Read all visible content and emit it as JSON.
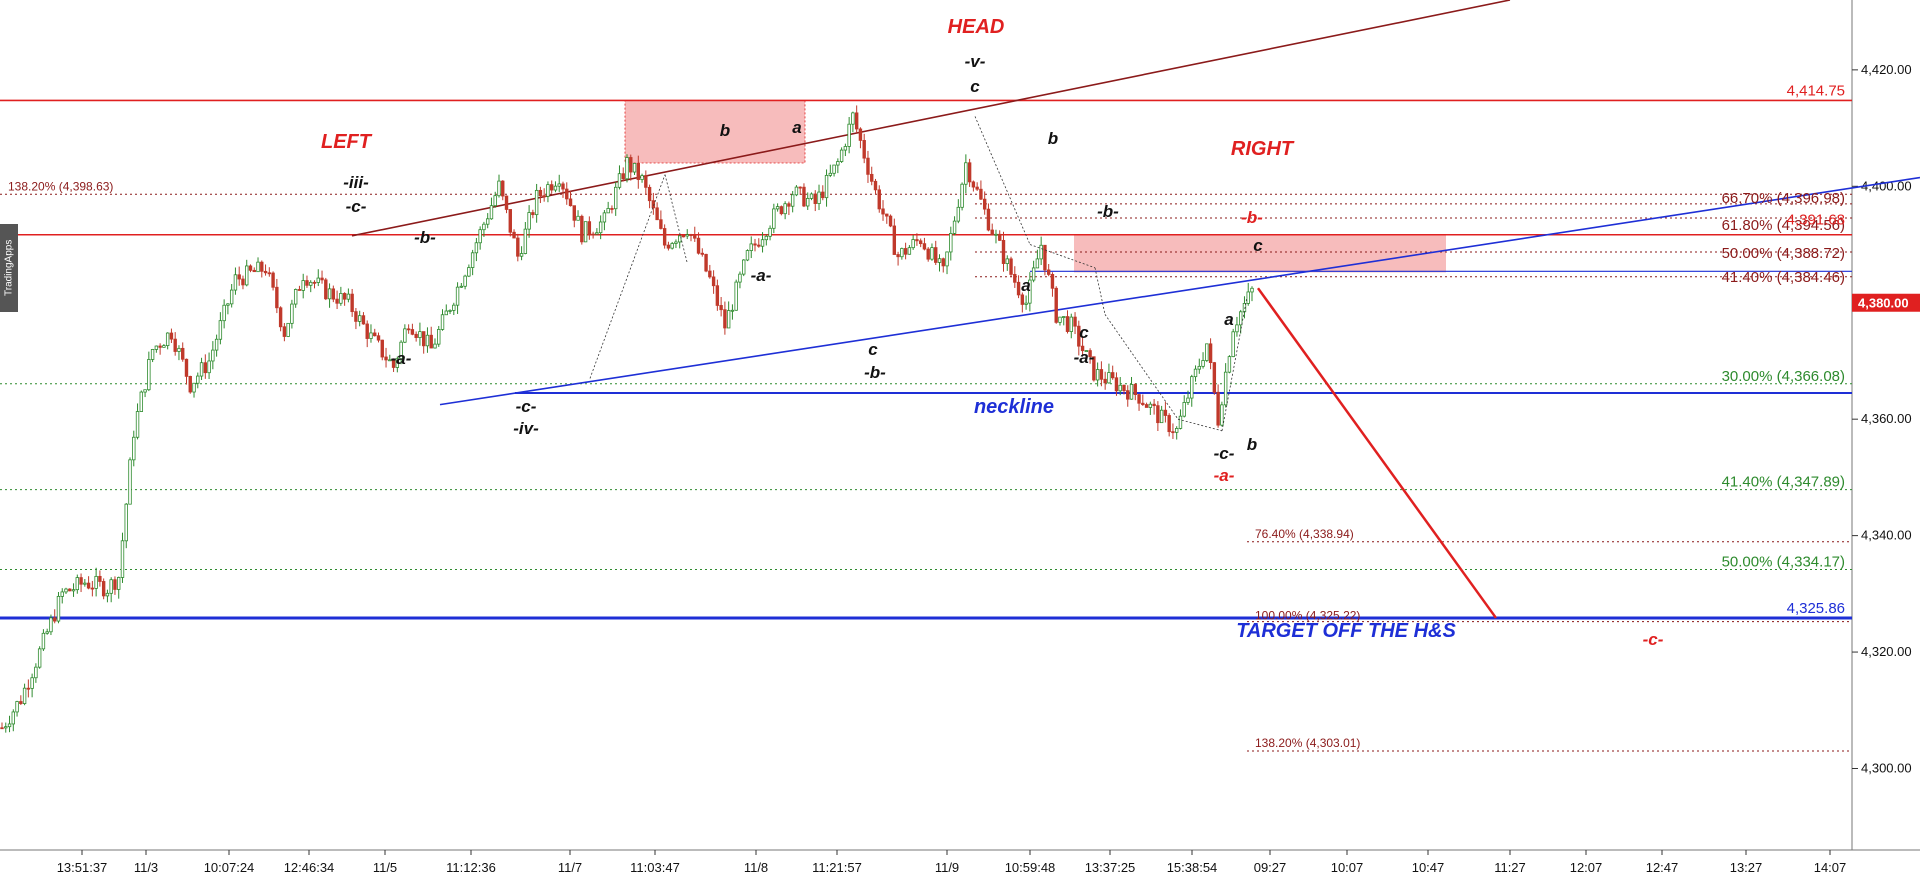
{
  "sidebar_tab": "TradingApps",
  "colors": {
    "candle_up": "#2e8b2e",
    "candle_down": "#c0392b",
    "resistance": "#e02020",
    "trendline": "#8b1a1a",
    "neckline": "#1e2fd6",
    "target": "#1e2fd6",
    "fib_red": "#8b1a1a",
    "fib_green": "#2e8b2e",
    "zone": "#f4a6a6",
    "price_tag": "#e02020"
  },
  "chart_data": {
    "type": "candlestick",
    "title": "",
    "ylim": [
      4286,
      4432
    ],
    "y_ticks": [
      "4,300.00",
      "4,320.00",
      "4,340.00",
      "4,360.00",
      "4,380.00",
      "4,400.00",
      "4,420.00"
    ],
    "y_tick_values": [
      4300,
      4320,
      4340,
      4360,
      4380,
      4400,
      4420
    ],
    "x_ticks": [
      "13:51:37",
      "11/3",
      "10:07:24",
      "12:46:34",
      "11/5",
      "11:12:36",
      "11/7",
      "11:03:47",
      "11/8",
      "11:21:57",
      "11/9",
      "10:59:48",
      "13:37:25",
      "15:38:54",
      "09:27",
      "10:07",
      "10:47",
      "11:27",
      "12:07",
      "12:47",
      "13:27",
      "14:07"
    ],
    "last_price": "4,380.00",
    "last_price_value": 4380,
    "price_anchors": [
      [
        0,
        4307
      ],
      [
        5,
        4312
      ],
      [
        10,
        4320
      ],
      [
        16,
        4330
      ],
      [
        22,
        4332
      ],
      [
        28,
        4331
      ],
      [
        31,
        4333
      ],
      [
        35,
        4358
      ],
      [
        40,
        4372
      ],
      [
        45,
        4375
      ],
      [
        50,
        4366
      ],
      [
        55,
        4370
      ],
      [
        62,
        4384
      ],
      [
        70,
        4386
      ],
      [
        75,
        4375
      ],
      [
        80,
        4385
      ],
      [
        86,
        4382
      ],
      [
        92,
        4380
      ],
      [
        98,
        4374
      ],
      [
        104,
        4369
      ],
      [
        108,
        4377
      ],
      [
        114,
        4372
      ],
      [
        120,
        4381
      ],
      [
        127,
        4392
      ],
      [
        132,
        4400
      ],
      [
        137,
        4388
      ],
      [
        142,
        4398
      ],
      [
        148,
        4402
      ],
      [
        154,
        4392
      ],
      [
        160,
        4394
      ],
      [
        166,
        4404
      ],
      [
        170,
        4401
      ],
      [
        176,
        4390
      ],
      [
        182,
        4393
      ],
      [
        188,
        4384
      ],
      [
        192,
        4376
      ],
      [
        198,
        4388
      ],
      [
        204,
        4394
      ],
      [
        210,
        4399
      ],
      [
        216,
        4397
      ],
      [
        222,
        4404
      ],
      [
        226,
        4412
      ],
      [
        232,
        4399
      ],
      [
        238,
        4388
      ],
      [
        244,
        4391
      ],
      [
        250,
        4385
      ],
      [
        256,
        4404
      ],
      [
        262,
        4394
      ],
      [
        268,
        4385
      ],
      [
        272,
        4380
      ],
      [
        276,
        4390
      ],
      [
        280,
        4378
      ],
      [
        284,
        4376
      ],
      [
        290,
        4368
      ],
      [
        296,
        4366
      ],
      [
        302,
        4364
      ],
      [
        308,
        4360
      ],
      [
        312,
        4358
      ],
      [
        316,
        4366
      ],
      [
        320,
        4373
      ],
      [
        323,
        4360
      ],
      [
        327,
        4376
      ],
      [
        332,
        4382
      ]
    ],
    "annotations": {
      "pattern": [
        "HEAD",
        "LEFT",
        "RIGHT"
      ],
      "waves": [
        "-v-",
        "c",
        "-iii-",
        "-c-",
        "-b-",
        "-a-",
        "b",
        "a",
        "-a-",
        "-c-",
        "-iv-",
        "c",
        "-b-",
        "b",
        "a",
        "-b-",
        "c",
        "c",
        "-a-",
        "a",
        "-c-",
        "b",
        "-a-",
        "-b-",
        "-c-"
      ],
      "neckline_label": "neckline",
      "target_label": "TARGET OFF THE H&S"
    },
    "levels": {
      "resistance_high": {
        "label": "4,414.75",
        "value": 4414.75
      },
      "resistance_low": {
        "value": 4391.68,
        "label": "4,391.68"
      },
      "target": {
        "label": "4,325.86",
        "value": 4325.86
      },
      "neckline": {
        "value": 4364.5
      }
    },
    "fib_levels_red": [
      {
        "label": "138.20% (4,398.63)",
        "value": 4398.63
      },
      {
        "label": "66.70% (4,396.98)",
        "value": 4396.98
      },
      {
        "label": "61.80% (4,394.56)",
        "value": 4394.56
      },
      {
        "label": "50.00% (4,388.72)",
        "value": 4388.72
      },
      {
        "label": "41.40% (4,384.46)",
        "value": 4384.46
      },
      {
        "label": "76.40% (4,338.94)",
        "value": 4338.94
      },
      {
        "label": "100.00% (4,325.22)",
        "value": 4325.22
      },
      {
        "label": "138.20% (4,303.01)",
        "value": 4303.01
      }
    ],
    "fib_levels_green": [
      {
        "label": "30.00% (4,366.08)",
        "value": 4366.08
      },
      {
        "label": "41.40% (4,347.89)",
        "value": 4347.89
      },
      {
        "label": "50.00% (4,334.17)",
        "value": 4334.17
      }
    ]
  }
}
